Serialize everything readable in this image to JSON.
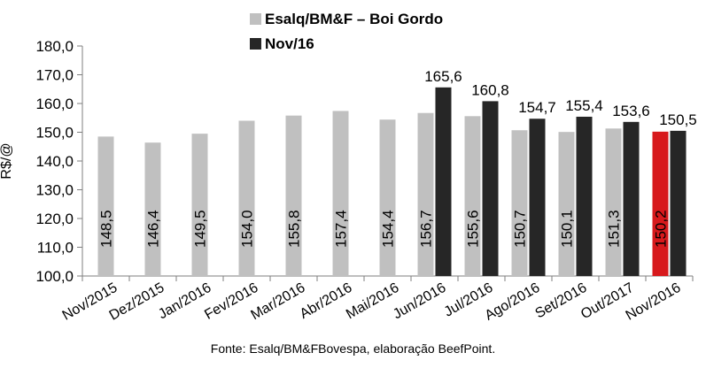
{
  "chart_data": {
    "type": "bar",
    "ylabel": "R$/@",
    "xlabel": "",
    "ylim": [
      100,
      180
    ],
    "yticks": [
      "100,0",
      "110,0",
      "120,0",
      "130,0",
      "140,0",
      "150,0",
      "160,0",
      "170,0",
      "180,0"
    ],
    "grid": false,
    "legend_position": "top",
    "categories": [
      "Nov/2015",
      "Dez/2015",
      "Jan/2016",
      "Fev/2016",
      "Mar/2016",
      "Abr/2016",
      "Mai/2016",
      "Jun/2016",
      "Jul/2016",
      "Ago/2016",
      "Set/2016",
      "Out/2017",
      "Nov/2016"
    ],
    "series": [
      {
        "name": "Esalq/BM&F – Boi Gordo",
        "color": "#c0c0c0",
        "values": [
          148.5,
          146.4,
          149.5,
          154.0,
          155.8,
          157.4,
          154.4,
          156.7,
          155.6,
          150.7,
          150.1,
          151.3,
          150.2
        ],
        "labels": [
          "148,5",
          "146,4",
          "149,5",
          "154,0",
          "155,8",
          "157,4",
          "154,4",
          "156,7",
          "155,6",
          "150,7",
          "150,1",
          "151,3",
          "150,2"
        ],
        "highlight": {
          "index": 12,
          "color": "#d7191c"
        }
      },
      {
        "name": "Nov/16",
        "color": "#262626",
        "values": [
          null,
          null,
          null,
          null,
          null,
          null,
          null,
          165.6,
          160.8,
          154.7,
          155.4,
          153.6,
          150.5
        ],
        "labels": [
          null,
          null,
          null,
          null,
          null,
          null,
          null,
          "165,6",
          "160,8",
          "154,7",
          "155,4",
          "153,6",
          "150,5"
        ]
      }
    ]
  },
  "source_note": "Fonte: Esalq/BM&FBovespa, elaboração BeefPoint."
}
